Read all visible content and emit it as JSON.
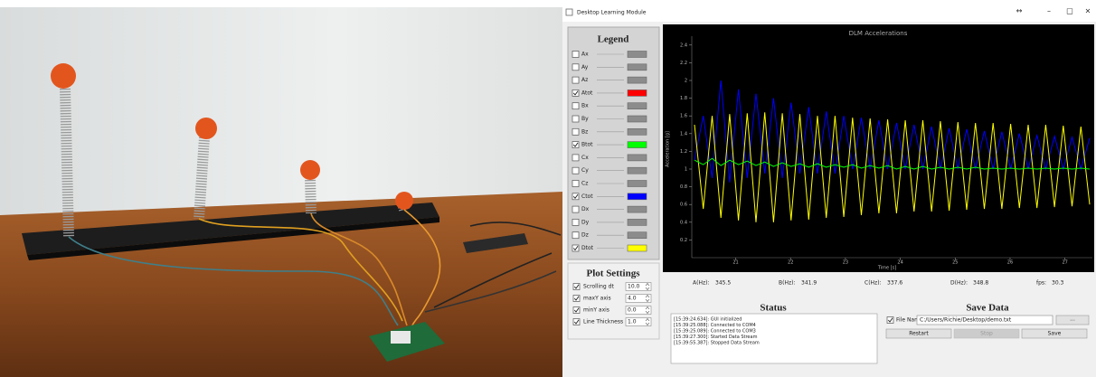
{
  "window": {
    "title": "Desktop Learning Module",
    "controls": [
      "↔",
      "–",
      "□",
      "×"
    ]
  },
  "legend": {
    "title": "Legend",
    "items": [
      {
        "name": "Ax",
        "checked": false,
        "color": "#8c8c8c"
      },
      {
        "name": "Ay",
        "checked": false,
        "color": "#8c8c8c"
      },
      {
        "name": "Az",
        "checked": false,
        "color": "#8c8c8c"
      },
      {
        "name": "Atot",
        "checked": true,
        "color": "#ff0000"
      },
      {
        "name": "Bx",
        "checked": false,
        "color": "#8c8c8c"
      },
      {
        "name": "By",
        "checked": false,
        "color": "#8c8c8c"
      },
      {
        "name": "Bz",
        "checked": false,
        "color": "#8c8c8c"
      },
      {
        "name": "Btot",
        "checked": true,
        "color": "#00ff00"
      },
      {
        "name": "Cx",
        "checked": false,
        "color": "#8c8c8c"
      },
      {
        "name": "Cy",
        "checked": false,
        "color": "#8c8c8c"
      },
      {
        "name": "Cz",
        "checked": false,
        "color": "#8c8c8c"
      },
      {
        "name": "Ctot",
        "checked": true,
        "color": "#0000ff"
      },
      {
        "name": "Dx",
        "checked": false,
        "color": "#8c8c8c"
      },
      {
        "name": "Dy",
        "checked": false,
        "color": "#8c8c8c"
      },
      {
        "name": "Dz",
        "checked": false,
        "color": "#8c8c8c"
      },
      {
        "name": "Dtot",
        "checked": true,
        "color": "#ffff00"
      }
    ]
  },
  "plot_settings": {
    "title": "Plot Settings",
    "rows": [
      {
        "label": "Scrolling dt",
        "checked": true,
        "value": "10.0"
      },
      {
        "label": "maxY axis",
        "checked": true,
        "value": "4.0"
      },
      {
        "label": "minY axis",
        "checked": true,
        "value": "0.0"
      },
      {
        "label": "Line Thickness",
        "checked": true,
        "value": "1.0"
      }
    ]
  },
  "chart_data": {
    "type": "line",
    "title": "DLM Accelerations",
    "x_label": "Time [s]",
    "y_label": "Acceleration [g]",
    "x": [
      20.25,
      20.41,
      20.57,
      20.73,
      20.89,
      21.05,
      21.21,
      21.37,
      21.53,
      21.69,
      21.85,
      22.01,
      22.17,
      22.33,
      22.49,
      22.65,
      22.81,
      22.97,
      23.13,
      23.29,
      23.45,
      23.61,
      23.77,
      23.93,
      24.09,
      24.25,
      24.41,
      24.57,
      24.73,
      24.89,
      25.05,
      25.21,
      25.37,
      25.53,
      25.69,
      25.85,
      26.01,
      26.17,
      26.33,
      26.49,
      26.65,
      26.81,
      26.97,
      27.13,
      27.29,
      27.45
    ],
    "series": [
      {
        "color": "#0000ff",
        "values": [
          1.1,
          1.6,
          0.9,
          2.0,
          0.85,
          1.9,
          0.9,
          1.85,
          0.95,
          1.8,
          0.9,
          1.75,
          0.95,
          1.7,
          0.95,
          1.65,
          0.95,
          1.6,
          1.0,
          1.58,
          1.0,
          1.55,
          1.0,
          1.52,
          1.0,
          1.5,
          1.0,
          1.48,
          1.0,
          1.46,
          1.0,
          1.45,
          1.0,
          1.43,
          1.0,
          1.42,
          1.0,
          1.4,
          1.0,
          1.38,
          1.0,
          1.37,
          1.0,
          1.36,
          1.0,
          1.35
        ]
      },
      {
        "color": "#ffff00",
        "values": [
          1.5,
          0.55,
          1.6,
          0.45,
          1.62,
          0.42,
          1.63,
          0.4,
          1.64,
          0.4,
          1.63,
          0.42,
          1.62,
          0.43,
          1.6,
          0.45,
          1.6,
          0.46,
          1.58,
          0.48,
          1.57,
          0.5,
          1.56,
          0.5,
          1.55,
          0.52,
          1.55,
          0.52,
          1.54,
          0.53,
          1.53,
          0.54,
          1.52,
          0.55,
          1.52,
          0.55,
          1.51,
          0.56,
          1.5,
          0.56,
          1.5,
          0.57,
          1.49,
          0.58,
          1.48,
          0.6
        ]
      },
      {
        "color": "#00ff00",
        "values": [
          1.1,
          1.05,
          1.12,
          1.04,
          1.1,
          1.05,
          1.09,
          1.04,
          1.08,
          1.03,
          1.07,
          1.03,
          1.06,
          1.02,
          1.06,
          1.02,
          1.05,
          1.02,
          1.05,
          1.01,
          1.04,
          1.01,
          1.04,
          1.0,
          1.03,
          1.0,
          1.03,
          1.0,
          1.02,
          1.0,
          1.02,
          1.0,
          1.02,
          1.0,
          1.01,
          1.0,
          1.01,
          1.0,
          1.01,
          1.0,
          1.01,
          1.0,
          1.01,
          1.0,
          1.01,
          1.0
        ]
      }
    ],
    "xlim": [
      20.2,
      27.5
    ],
    "xticks": [
      21,
      22,
      23,
      24,
      25,
      26,
      27
    ],
    "ylim": [
      0,
      2.5
    ],
    "yticks": [
      0.2,
      0.4,
      0.6,
      0.8,
      1,
      1.2,
      1.4,
      1.6,
      1.8,
      2,
      2.2,
      2.4
    ],
    "grid": false
  },
  "rates": [
    {
      "label": "A(Hz):",
      "value": 345.5
    },
    {
      "label": "B(Hz):",
      "value": 341.9
    },
    {
      "label": "C(Hz):",
      "value": 337.6
    },
    {
      "label": "D(Hz):",
      "value": 348.8
    },
    {
      "label": "fps:",
      "value": 30.3
    }
  ],
  "status": {
    "title": "Status",
    "log": [
      "[15:39:24.634]: GUI initialized",
      "[15:39:25.088]: Connected to COM4",
      "[15:39:25.089]: Connected to COM3",
      "[15:39:27.300]: Started Data Stream",
      "[15:39:55.387]: Stopped Data Stream"
    ]
  },
  "save_data": {
    "title": "Save Data",
    "file_label": "File Name",
    "file_checked": true,
    "path": "C:/Users/Richie/Desktop/demo.txt",
    "browse": "...",
    "buttons": [
      {
        "label": "Restart",
        "enabled": true
      },
      {
        "label": "Stop",
        "enabled": false
      },
      {
        "label": "Save",
        "enabled": true
      }
    ]
  }
}
